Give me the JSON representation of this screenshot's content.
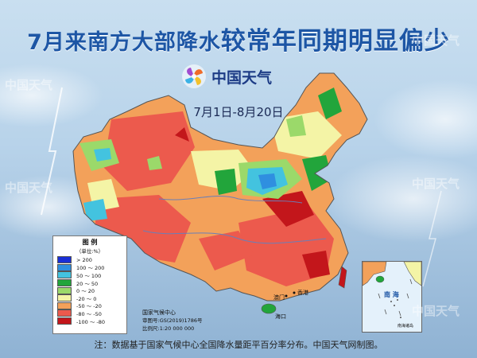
{
  "title": {
    "part1": "7月来南方大部降水",
    "part2": "较常年同期明显偏少"
  },
  "brand": {
    "logo_text": "中国天气"
  },
  "date_range": "7月1日-8月20日",
  "legend": {
    "title": "图 例",
    "unit": "（单位:%）",
    "items": [
      {
        "label": "> 200",
        "color": "#1a2fd6"
      },
      {
        "label": "100 ～ 200",
        "color": "#2f8fe0"
      },
      {
        "label": "50 ～ 100",
        "color": "#43c3df"
      },
      {
        "label": "20 ～ 50",
        "color": "#22a53b"
      },
      {
        "label": "0 ～ 20",
        "color": "#9bd96a"
      },
      {
        "label": "-20 ～ 0",
        "color": "#f4f4a6"
      },
      {
        "label": "-50 ～ -20",
        "color": "#f3a15a"
      },
      {
        "label": "-80 ～ -50",
        "color": "#ec5a4d"
      },
      {
        "label": "-100 ～ -80",
        "color": "#c3161b"
      }
    ]
  },
  "credit": {
    "center": "国家气候中心",
    "review_no": "审图号:GS(2019)1786号",
    "scale": "比例尺:1:20 000 000"
  },
  "inset": {
    "label": "南 海",
    "sub": "南海诸岛"
  },
  "cities": [
    {
      "name": "海口"
    },
    {
      "name": "香港"
    },
    {
      "name": "澳门"
    }
  ],
  "footnote": "注：数据基于国家气候中心全国降水量距平百分率分布。中国天气网制图。",
  "watermark": "中国天气"
}
